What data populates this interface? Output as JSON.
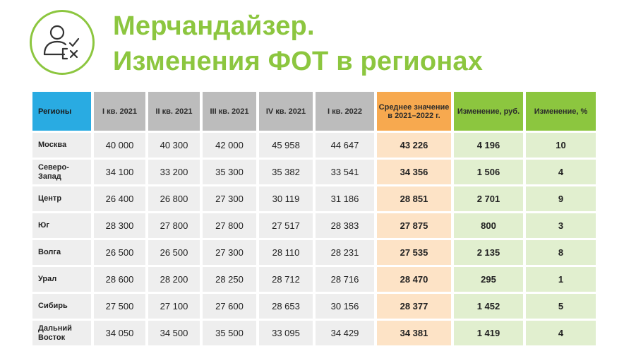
{
  "header": {
    "title_line1": "Мерчандайзер.",
    "title_line2": "Изменения ФОТ в регионах",
    "logo_icon": "person-checkmark-icon",
    "accent_color": "#8cc63f"
  },
  "table": {
    "columns": [
      "Регионы",
      "I кв. 2021",
      "II кв. 2021",
      "III кв. 2021",
      "IV кв. 2021",
      "I кв. 2022",
      "Среднее значение в 2021–2022 г.",
      "Изменение, руб.",
      "Изменение, %"
    ],
    "rows": [
      [
        "Москва",
        "40 000",
        "40 300",
        "42 000",
        "45 958",
        "44 647",
        "43 226",
        "4 196",
        "10"
      ],
      [
        "Северо-Запад",
        "34 100",
        "33 200",
        "35 300",
        "35 382",
        "33 541",
        "34 356",
        "1 506",
        "4"
      ],
      [
        "Центр",
        "26 400",
        "26 800",
        "27 300",
        "30 119",
        "31 186",
        "28 851",
        "2 701",
        "9"
      ],
      [
        "Юг",
        "28 300",
        "27 800",
        "27 800",
        "27 517",
        "28 383",
        "27 875",
        "800",
        "3"
      ],
      [
        "Волга",
        "26 500",
        "26 500",
        "27 300",
        "28 110",
        "28 231",
        "27 535",
        "2 135",
        "8"
      ],
      [
        "Урал",
        "28 600",
        "28 200",
        "28 250",
        "28 712",
        "28 716",
        "28 470",
        "295",
        "1"
      ],
      [
        "Сибирь",
        "27 500",
        "27 100",
        "27 600",
        "28 653",
        "30 156",
        "28 377",
        "1 452",
        "5"
      ],
      [
        "Дальний Восток",
        "34 050",
        "34 500",
        "35 500",
        "33 095",
        "34 429",
        "34 381",
        "1 419",
        "4"
      ]
    ]
  }
}
